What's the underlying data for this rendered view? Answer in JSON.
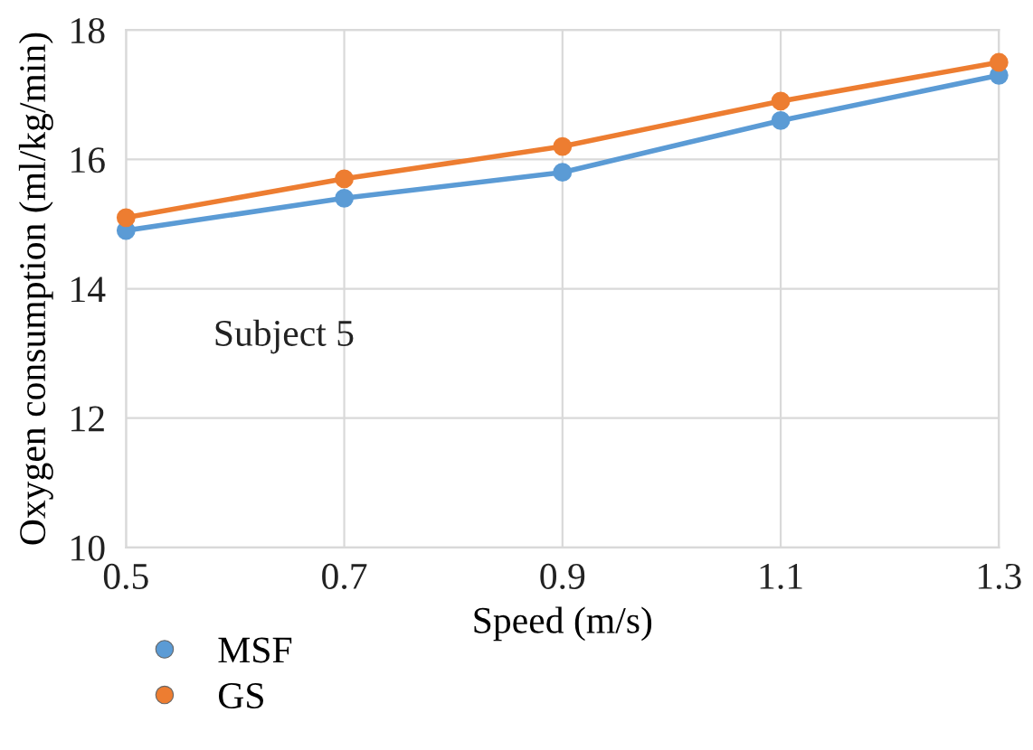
{
  "chart_data": {
    "type": "line",
    "xlabel": "Speed (m/s)",
    "ylabel": "Oxygen consumption (ml/kg/min)",
    "x": [
      0.5,
      0.7,
      0.9,
      1.1,
      1.3
    ],
    "series": [
      {
        "name": "MSF",
        "color": "#5b9bd5",
        "values": [
          14.9,
          15.4,
          15.8,
          16.6,
          17.3
        ]
      },
      {
        "name": "GS",
        "color": "#ed7d31",
        "values": [
          15.1,
          15.7,
          16.2,
          16.9,
          17.5
        ]
      }
    ],
    "xlim": [
      0.5,
      1.3
    ],
    "xticks": [
      0.5,
      0.7,
      0.9,
      1.1,
      1.3
    ],
    "ylim": [
      10,
      18
    ],
    "yticks": [
      10,
      12,
      14,
      16,
      18
    ],
    "grid": true,
    "legend": "bottom left",
    "marker": "circle",
    "line_style": "solid",
    "annotations": [
      "Subject 5"
    ]
  }
}
